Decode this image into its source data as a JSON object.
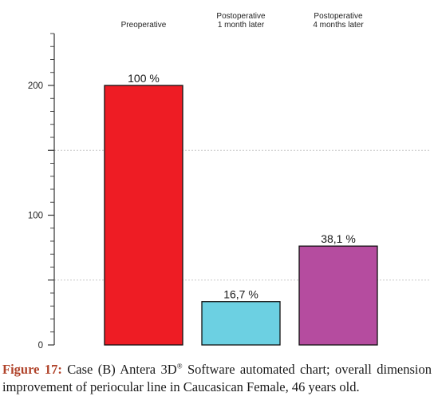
{
  "chart_data": {
    "type": "bar",
    "categories": [
      [
        "Preoperative"
      ],
      [
        "Postoperative",
        "1 month later"
      ],
      [
        "Postoperative",
        "4 months later"
      ]
    ],
    "values": [
      200,
      33.4,
      76.2
    ],
    "data_labels": [
      "100 %",
      "16,7 %",
      "38,1 %"
    ],
    "colors": [
      "#ee1c24",
      "#6cd0e2",
      "#b54c9f"
    ],
    "ylim": [
      0,
      240
    ],
    "yticks": [
      0,
      100,
      200
    ],
    "grid": "dashed-horizontal",
    "legend": "none"
  },
  "caption": {
    "label": "Figure 17:",
    "text_before_sup": " Case (B) Antera 3D",
    "sup": "®",
    "text_after_sup": " Software automated chart; overall dimension improvement of periocular line in Caucasican Female, 46 years old."
  }
}
